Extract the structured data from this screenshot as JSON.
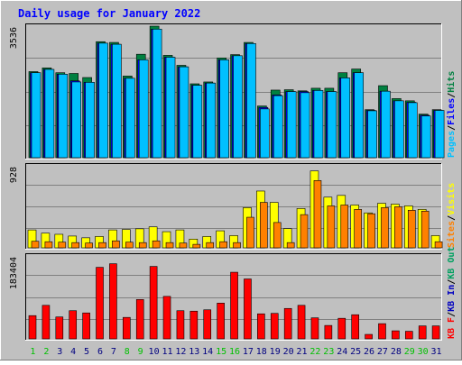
{
  "chart_data": {
    "type": "bar",
    "title": "Daily usage for January 2022",
    "categories": [
      "1",
      "2",
      "3",
      "4",
      "5",
      "6",
      "7",
      "8",
      "9",
      "10",
      "11",
      "12",
      "13",
      "14",
      "15",
      "16",
      "17",
      "18",
      "19",
      "20",
      "21",
      "22",
      "23",
      "24",
      "25",
      "26",
      "27",
      "28",
      "29",
      "30",
      "31"
    ],
    "weekend_days": [
      "1",
      "2",
      "8",
      "9",
      "15",
      "16",
      "22",
      "23",
      "29",
      "30"
    ],
    "panels": [
      {
        "id": "hits-files-pages",
        "max_label": "3536",
        "ymax": 3536,
        "series": [
          {
            "name": "Hits",
            "color": "#008040",
            "values": [
              2330,
              2430,
              2300,
              2280,
              2170,
              3140,
              3120,
              2210,
              2800,
              3560,
              2770,
              2500,
              2000,
              2050,
              2700,
              2790,
              3120,
              1400,
              1830,
              1840,
              1810,
              1880,
              1880,
              2300,
              2400,
              1300,
              1950,
              1600,
              1540,
              1180,
              1300
            ]
          },
          {
            "name": "Files",
            "color": "#0000ff",
            "values": [
              2300,
              2390,
              2260,
              2080,
              2040,
              3100,
              3070,
              2150,
              2650,
              3480,
              2720,
              2460,
              1960,
              2020,
              2650,
              2760,
              3090,
              1360,
              1700,
              1790,
              1790,
              1820,
              1790,
              2160,
              2300,
              1280,
              1800,
              1540,
              1500,
              1150,
              1280
            ]
          },
          {
            "name": "Pages",
            "color": "#00c0ff",
            "values": [
              2300,
              2390,
              2260,
              2050,
              2040,
              3100,
              3070,
              2150,
              2650,
              3480,
              2720,
              2460,
              1960,
              2020,
              2650,
              2760,
              3090,
              1320,
              1680,
              1790,
              1760,
              1820,
              1790,
              2160,
              2300,
              1270,
              1800,
              1540,
              1490,
              1130,
              1280
            ]
          }
        ],
        "legend": [
          "Pages",
          "/",
          "Files",
          "/",
          "Hits"
        ]
      },
      {
        "id": "visits-sites",
        "max_label": "928",
        "ymax": 928,
        "series": [
          {
            "name": "Visits",
            "color": "#ffff00",
            "values": [
              205,
              168,
              155,
              135,
              115,
              130,
              205,
              210,
              218,
              240,
              185,
              205,
              100,
              130,
              195,
              140,
              460,
              650,
              520,
              220,
              450,
              880,
              580,
              600,
              490,
              400,
              510,
              500,
              480,
              440,
              140
            ]
          },
          {
            "name": "Sites",
            "color": "#ff8000",
            "values": [
              75,
              70,
              65,
              60,
              55,
              60,
              80,
              65,
              60,
              80,
              60,
              55,
              40,
              60,
              70,
              60,
              350,
              520,
              290,
              60,
              380,
              770,
              480,
              490,
              440,
              390,
              460,
              470,
              430,
              420,
              70
            ]
          }
        ],
        "legend": [
          "Sites",
          "/",
          "Visits"
        ]
      },
      {
        "id": "kb",
        "max_label": "183404",
        "ymax": 183404,
        "series": [
          {
            "name": "KB F",
            "color": "#ff0000",
            "values": [
              52000,
              75000,
              49000,
              63000,
              58000,
              160000,
              168000,
              48000,
              88000,
              162000,
              95000,
              63000,
              62000,
              65000,
              80000,
              149000,
              134000,
              56000,
              57000,
              68000,
              75000,
              47000,
              30000,
              46000,
              54000,
              10000,
              34000,
              18000,
              17000,
              29000,
              29000
            ]
          }
        ],
        "legend": [
          "KB F",
          "/",
          "KB In",
          "/",
          "KB Out"
        ]
      }
    ]
  },
  "colors": {
    "background": "#c0c0c0",
    "frame": "#000000",
    "title": "#0000ff",
    "weekday_label": "#000080",
    "weekend_label": "#00c000",
    "grid": "#808080",
    "legend_kbin": "#0000c0",
    "legend_kbout": "#00a060",
    "legend_sites": "#ff8000",
    "legend_visits": "#ffff00",
    "legend_pages": "#00c0ff",
    "legend_files": "#0000ff",
    "legend_hits": "#008040",
    "legend_slash": "#000000"
  }
}
